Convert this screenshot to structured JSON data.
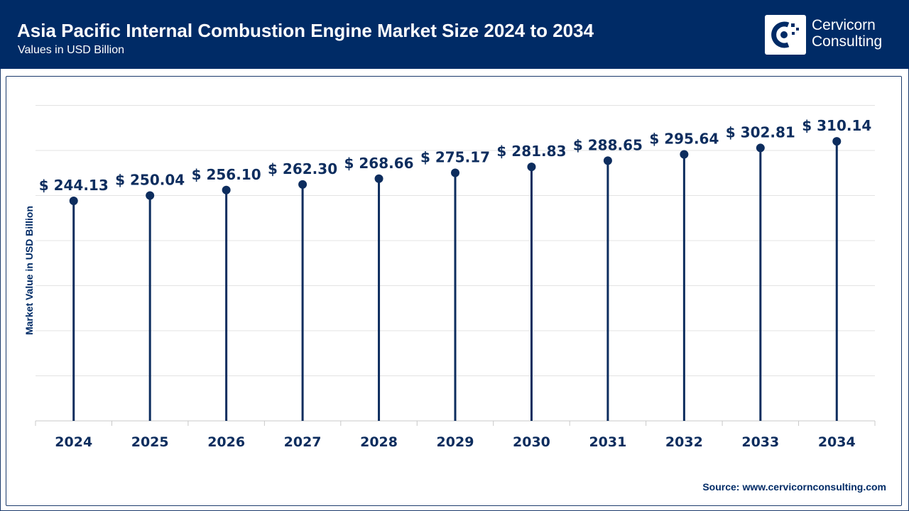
{
  "header": {
    "title": "Asia Pacific Internal Combustion Engine Market Size 2024 to 2034",
    "subtitle": "Values in USD Billion",
    "logo_line1": "Cervicorn",
    "logo_line2": "Consulting"
  },
  "colors": {
    "header_bg": "#002b66",
    "accent": "#0d2d5e",
    "grid": "#e3e3e3",
    "axis": "#c8c8c8"
  },
  "source": {
    "label": "Source:",
    "url": "www.cervicornconsulting.com"
  },
  "chart_data": {
    "type": "lollipop",
    "title": "Asia Pacific Internal Combustion Engine Market Size 2024 to 2034",
    "subtitle": "Values in USD Billion",
    "ylabel": "Market Value in USD Billion",
    "xlabel": "",
    "categories": [
      "2024",
      "2025",
      "2026",
      "2027",
      "2028",
      "2029",
      "2030",
      "2031",
      "2032",
      "2033",
      "2034"
    ],
    "values": [
      244.13,
      250.04,
      256.1,
      262.3,
      268.66,
      275.17,
      281.83,
      288.65,
      295.64,
      302.81,
      310.14
    ],
    "data_labels": [
      "$ 244.13",
      "$ 250.04",
      "$ 256.10",
      "$ 262.30",
      "$ 268.66",
      "$ 275.17",
      "$ 281.83",
      "$ 288.65",
      "$ 295.64",
      "$ 302.81",
      "$ 310.14"
    ],
    "ylim": [
      0,
      350
    ],
    "grid": true,
    "legend": "none"
  }
}
